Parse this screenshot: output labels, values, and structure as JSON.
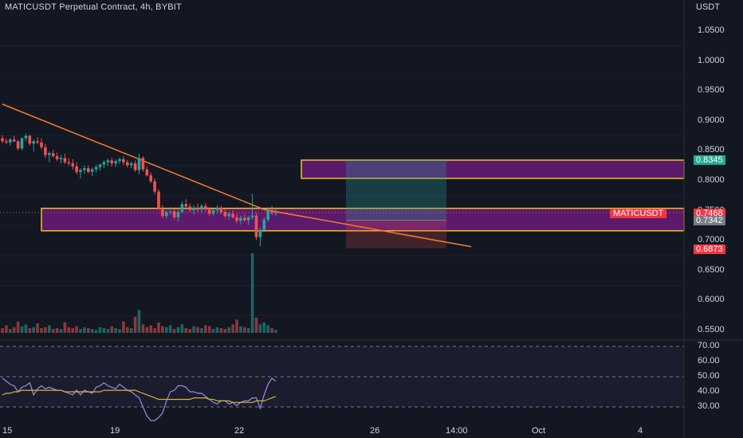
{
  "header": {
    "title": "MATICUSDT Perpetual Contract, 4h, BYBIT",
    "currency": "USDT"
  },
  "colors": {
    "background": "#131722",
    "up": "#26a69a",
    "down": "#ef5350",
    "zone_fill": "#6a1b7a",
    "zone_border": "#f0c419",
    "trendline": "#f57c2a",
    "rsi_line": "#9c8de0",
    "rsi_ma": "#d4b43c",
    "profit_zone": "#0d3b3a",
    "loss_zone": "#3f1a1e"
  },
  "price_axis": {
    "ticks": [
      "1.0500",
      "1.0000",
      "0.9500",
      "0.9000",
      "0.8500",
      "0.8000",
      "0.7500",
      "0.7000",
      "0.6500",
      "0.6000",
      "0.5500"
    ]
  },
  "rsi_axis": {
    "ticks": [
      "70.00",
      "60.00",
      "50.00",
      "40.00",
      "30.00"
    ]
  },
  "time_axis": {
    "labels": [
      "15",
      "19",
      "22",
      "26",
      "14:00",
      "Oct",
      "4"
    ]
  },
  "price_tags": {
    "upper_zone": "0.8345",
    "last": "0.7468",
    "symbol": "MATICUSDT",
    "lower_zone": "0.7342",
    "stop": "0.6873"
  },
  "chart_data": {
    "type": "candlestick",
    "symbol": "MATICUSDT",
    "timeframe": "4h",
    "exchange": "BYBIT",
    "ylim": [
      0.545,
      1.075
    ],
    "candles_ohlc": [
      [
        0.871,
        0.876,
        0.863,
        0.866
      ],
      [
        0.866,
        0.871,
        0.861,
        0.864
      ],
      [
        0.864,
        0.872,
        0.859,
        0.869
      ],
      [
        0.869,
        0.875,
        0.864,
        0.866
      ],
      [
        0.866,
        0.868,
        0.851,
        0.854
      ],
      [
        0.854,
        0.872,
        0.851,
        0.871
      ],
      [
        0.871,
        0.879,
        0.866,
        0.875
      ],
      [
        0.875,
        0.877,
        0.859,
        0.862
      ],
      [
        0.862,
        0.869,
        0.849,
        0.866
      ],
      [
        0.866,
        0.873,
        0.861,
        0.864
      ],
      [
        0.864,
        0.871,
        0.852,
        0.856
      ],
      [
        0.856,
        0.862,
        0.838,
        0.843
      ],
      [
        0.843,
        0.849,
        0.831,
        0.846
      ],
      [
        0.846,
        0.852,
        0.839,
        0.841
      ],
      [
        0.841,
        0.847,
        0.833,
        0.836
      ],
      [
        0.836,
        0.843,
        0.829,
        0.838
      ],
      [
        0.838,
        0.845,
        0.828,
        0.831
      ],
      [
        0.831,
        0.838,
        0.825,
        0.829
      ],
      [
        0.829,
        0.836,
        0.819,
        0.824
      ],
      [
        0.824,
        0.831,
        0.811,
        0.815
      ],
      [
        0.815,
        0.821,
        0.804,
        0.818
      ],
      [
        0.818,
        0.825,
        0.812,
        0.821
      ],
      [
        0.821,
        0.826,
        0.812,
        0.815
      ],
      [
        0.815,
        0.822,
        0.808,
        0.819
      ],
      [
        0.819,
        0.827,
        0.814,
        0.823
      ],
      [
        0.823,
        0.829,
        0.817,
        0.827
      ],
      [
        0.827,
        0.834,
        0.821,
        0.831
      ],
      [
        0.831,
        0.837,
        0.825,
        0.834
      ],
      [
        0.834,
        0.839,
        0.824,
        0.829
      ],
      [
        0.829,
        0.836,
        0.823,
        0.833
      ],
      [
        0.833,
        0.839,
        0.828,
        0.836
      ],
      [
        0.836,
        0.841,
        0.826,
        0.831
      ],
      [
        0.831,
        0.835,
        0.823,
        0.826
      ],
      [
        0.826,
        0.832,
        0.821,
        0.829
      ],
      [
        0.829,
        0.834,
        0.815,
        0.818
      ],
      [
        0.818,
        0.845,
        0.811,
        0.838
      ],
      [
        0.838,
        0.841,
        0.815,
        0.819
      ],
      [
        0.819,
        0.824,
        0.807,
        0.809
      ],
      [
        0.809,
        0.814,
        0.796,
        0.799
      ],
      [
        0.799,
        0.804,
        0.778,
        0.782
      ],
      [
        0.782,
        0.786,
        0.751,
        0.754
      ],
      [
        0.754,
        0.759,
        0.738,
        0.741
      ],
      [
        0.741,
        0.751,
        0.736,
        0.748
      ],
      [
        0.748,
        0.756,
        0.743,
        0.749
      ],
      [
        0.749,
        0.754,
        0.735,
        0.739
      ],
      [
        0.739,
        0.752,
        0.732,
        0.748
      ],
      [
        0.748,
        0.766,
        0.745,
        0.761
      ],
      [
        0.761,
        0.769,
        0.752,
        0.757
      ],
      [
        0.757,
        0.762,
        0.748,
        0.751
      ],
      [
        0.751,
        0.759,
        0.744,
        0.755
      ],
      [
        0.755,
        0.762,
        0.748,
        0.752
      ],
      [
        0.752,
        0.761,
        0.746,
        0.758
      ],
      [
        0.758,
        0.763,
        0.749,
        0.752
      ],
      [
        0.752,
        0.756,
        0.741,
        0.745
      ],
      [
        0.745,
        0.753,
        0.741,
        0.751
      ],
      [
        0.751,
        0.759,
        0.745,
        0.755
      ],
      [
        0.755,
        0.758,
        0.744,
        0.748
      ],
      [
        0.748,
        0.754,
        0.738,
        0.741
      ],
      [
        0.741,
        0.748,
        0.735,
        0.745
      ],
      [
        0.745,
        0.751,
        0.737,
        0.739
      ],
      [
        0.739,
        0.745,
        0.729,
        0.733
      ],
      [
        0.733,
        0.742,
        0.727,
        0.738
      ],
      [
        0.738,
        0.744,
        0.731,
        0.734
      ],
      [
        0.734,
        0.741,
        0.726,
        0.739
      ],
      [
        0.739,
        0.778,
        0.735,
        0.742
      ],
      [
        0.742,
        0.747,
        0.701,
        0.706
      ],
      [
        0.706,
        0.722,
        0.691,
        0.718
      ],
      [
        0.718,
        0.739,
        0.714,
        0.735
      ],
      [
        0.735,
        0.754,
        0.731,
        0.751
      ],
      [
        0.751,
        0.758,
        0.743,
        0.746
      ],
      [
        0.746,
        0.752,
        0.741,
        0.747
      ]
    ],
    "volumes": [
      5,
      8,
      4,
      6,
      12,
      7,
      9,
      5,
      6,
      10,
      5,
      6,
      8,
      4,
      5,
      4,
      11,
      6,
      5,
      7,
      4,
      6,
      5,
      4,
      3,
      6,
      5,
      4,
      7,
      5,
      4,
      12,
      6,
      5,
      17,
      24,
      9,
      6,
      8,
      5,
      11,
      7,
      6,
      8,
      4,
      6,
      9,
      5,
      4,
      7,
      6,
      5,
      8,
      7,
      4,
      6,
      5,
      4,
      6,
      9,
      14,
      7,
      6,
      5,
      84,
      16,
      9,
      11,
      8,
      5,
      3
    ],
    "rsi": [
      49,
      47,
      45,
      44,
      40,
      43,
      44,
      46,
      38,
      42,
      44,
      42,
      43,
      42,
      41,
      41,
      40,
      39,
      38,
      41,
      38,
      41,
      40,
      39,
      43,
      44,
      46,
      44,
      43,
      42,
      45,
      43,
      41,
      40,
      38,
      36,
      30,
      24,
      21,
      21,
      23,
      26,
      34,
      40,
      41,
      44,
      44,
      43,
      40,
      40,
      39,
      39,
      37,
      35,
      33,
      32,
      34,
      34,
      32,
      33,
      31,
      33,
      34,
      34,
      36,
      36,
      29,
      38,
      45,
      49,
      47
    ],
    "rsi_ma": [
      38,
      39,
      39,
      40,
      40,
      41,
      41,
      41,
      41,
      41,
      41,
      41,
      41,
      41,
      41,
      41,
      40,
      40,
      40,
      40,
      40,
      40,
      40,
      40,
      40,
      40,
      41,
      41,
      41,
      41,
      41,
      41,
      41,
      41,
      41,
      40,
      39,
      38,
      37,
      36,
      35,
      35,
      35,
      35,
      35,
      35,
      35,
      35,
      35,
      36,
      36,
      36,
      36,
      35,
      35,
      34,
      34,
      34,
      34,
      33,
      33,
      33,
      33,
      33,
      33,
      34,
      34,
      34,
      35,
      36,
      37
    ],
    "zones": [
      {
        "top": 0.8345,
        "bottom": 0.804
      },
      {
        "top": 0.754,
        "bottom": 0.7165
      }
    ],
    "position": {
      "entry": 0.7342,
      "target": 0.8345,
      "stop": 0.6873
    },
    "trendline": [
      [
        0,
        0.928
      ],
      [
        67,
        0.752
      ],
      [
        120,
        0.69
      ]
    ],
    "last_price": 0.7468
  }
}
